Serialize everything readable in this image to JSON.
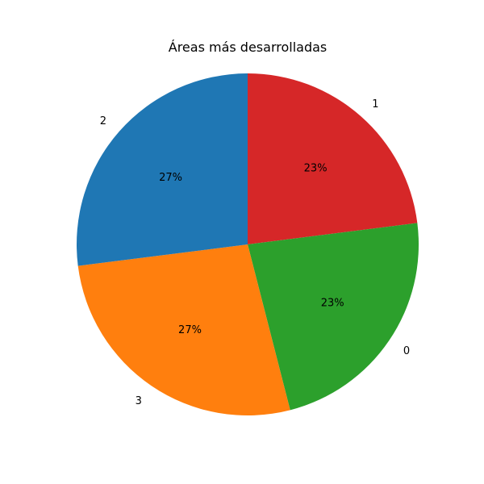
{
  "chart_data": {
    "type": "pie",
    "title": "Áreas más desarrolladas",
    "categories": [
      "1",
      "0",
      "3",
      "2"
    ],
    "values": [
      23,
      23,
      27,
      27
    ],
    "percent_labels": [
      "23%",
      "23%",
      "27%",
      "27%"
    ],
    "colors": [
      "#d62728",
      "#2ca02c",
      "#ff7f0e",
      "#1f77b4"
    ],
    "start_angle_deg": 90,
    "direction": "clockwise",
    "legend": "none"
  }
}
